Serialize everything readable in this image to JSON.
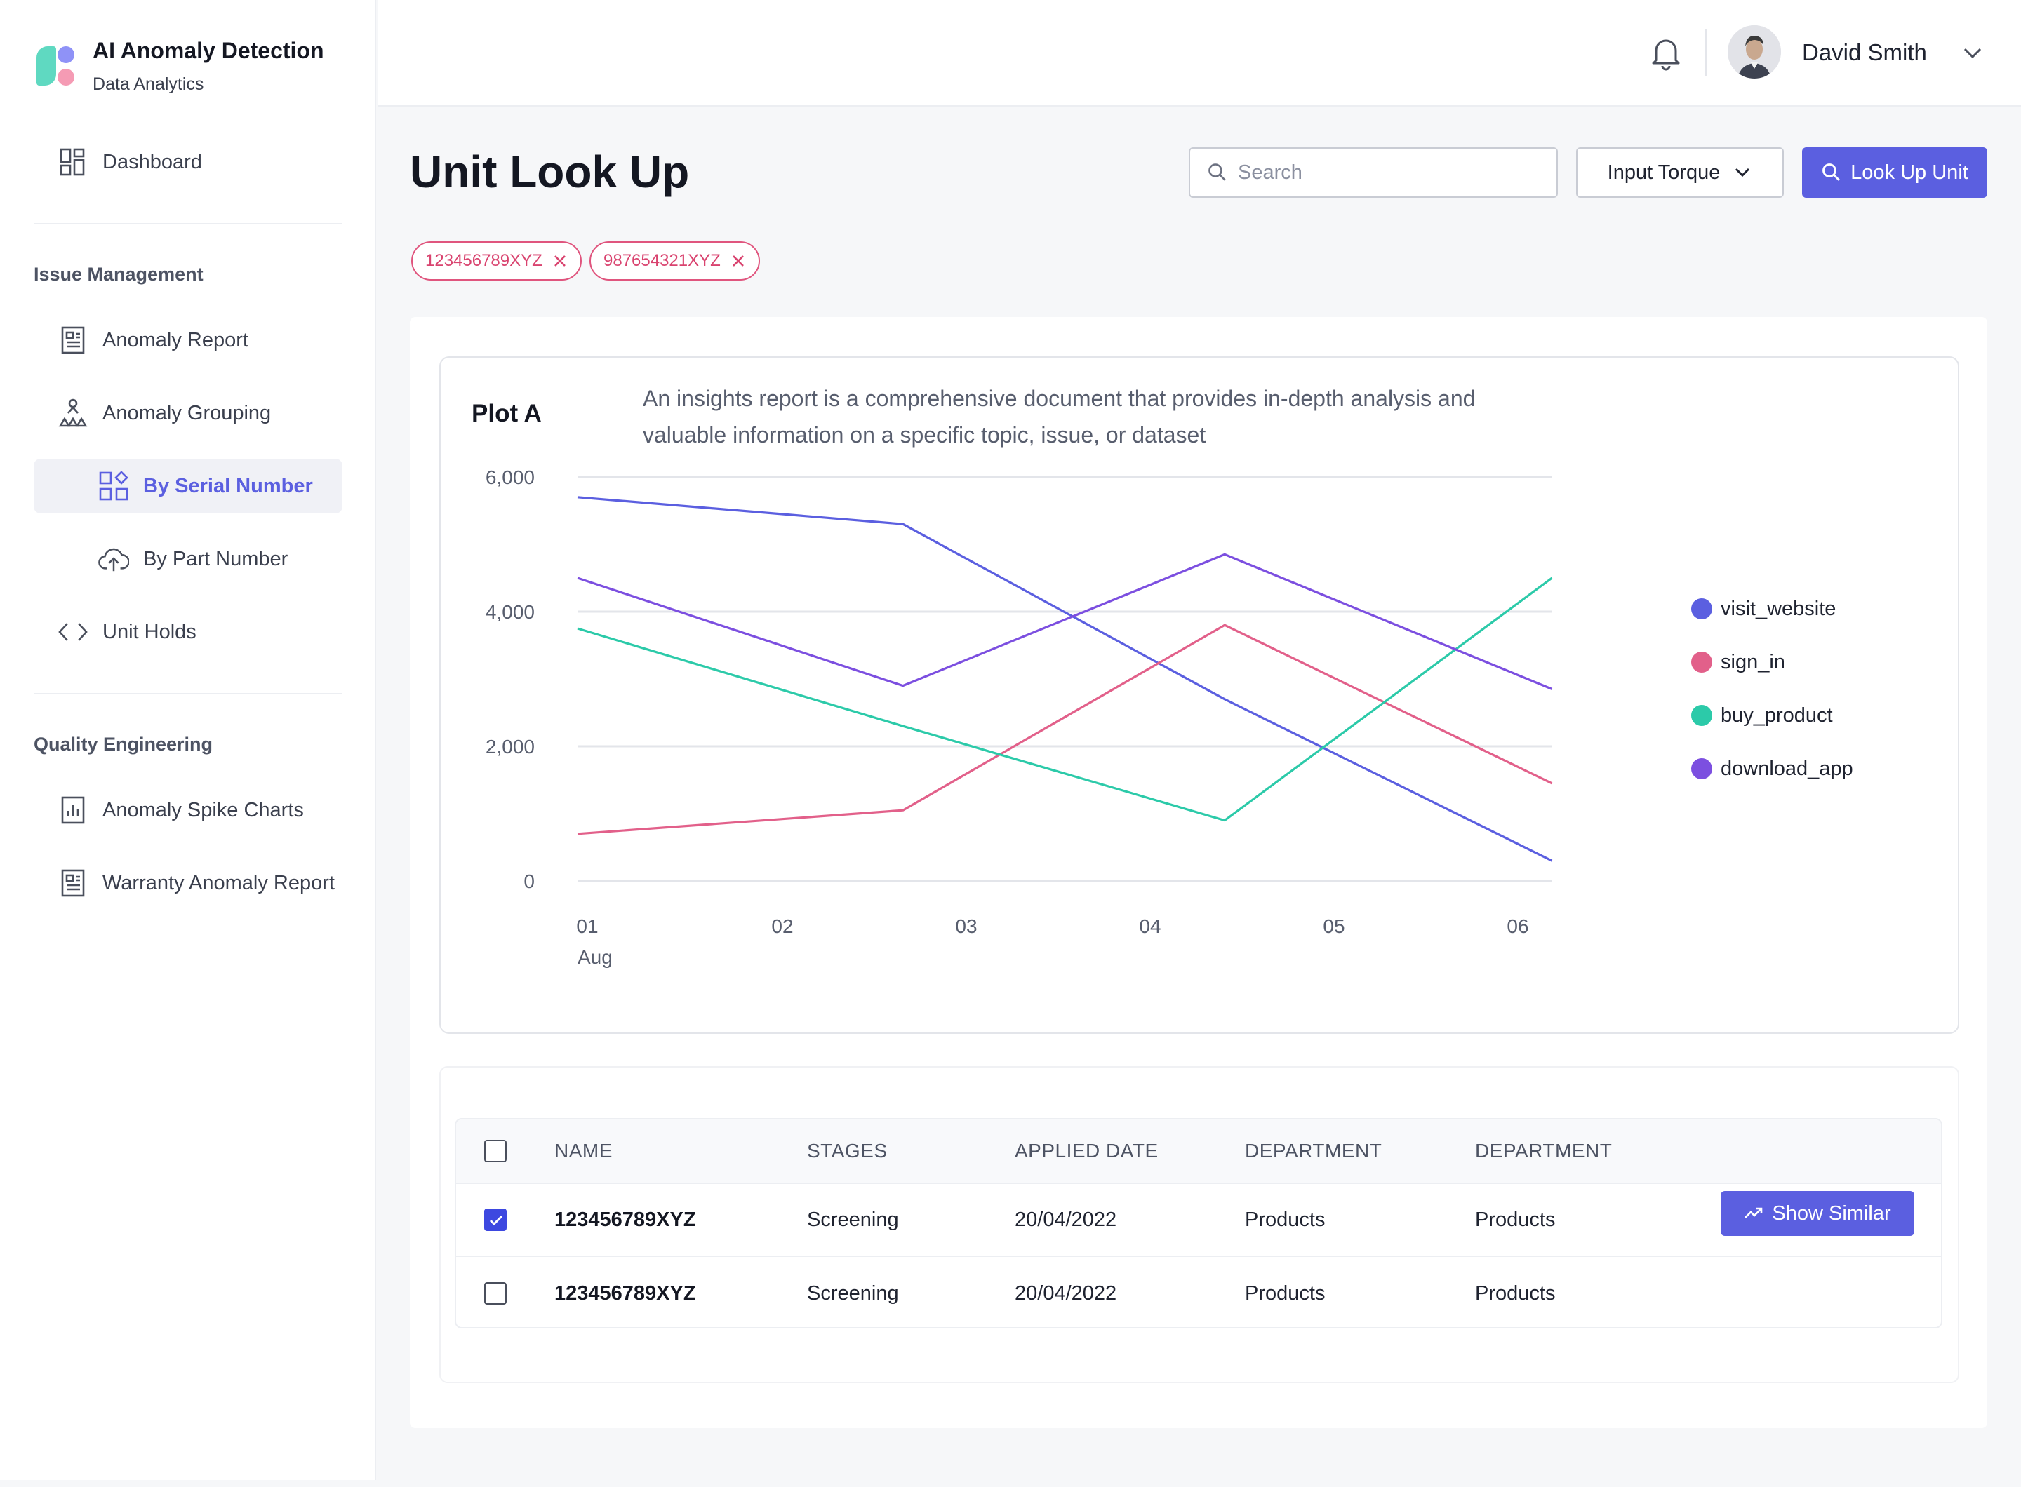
{
  "brand": {
    "title": "AI Anomaly Detection",
    "subtitle": "Data Analytics"
  },
  "sidebar": {
    "dashboard": "Dashboard",
    "section_issue": "Issue Management",
    "anomaly_report": "Anomaly Report",
    "anomaly_grouping": "Anomaly Grouping",
    "by_serial": "By Serial Number",
    "by_part": "By Part Number",
    "unit_holds": "Unit Holds",
    "section_quality": "Quality Engineering",
    "spike_charts": "Anomaly Spike Charts",
    "warranty_report": "Warranty Anomaly Report"
  },
  "topbar": {
    "user_name": "David Smith"
  },
  "page": {
    "title": "Unit Look Up",
    "search_placeholder": "Search",
    "dropdown_value": "Input Torque",
    "lookup_button": "Look Up Unit",
    "chips": [
      "123456789XYZ",
      "987654321XYZ"
    ]
  },
  "plot": {
    "title": "Plot A",
    "description": "An insights report is a comprehensive document that provides in-depth analysis and valuable information on a specific topic, issue, or dataset"
  },
  "chart_data": {
    "type": "line",
    "title": "Plot A",
    "x": [
      "01",
      "02",
      "03",
      "04",
      "05",
      "06"
    ],
    "x_sublabel": "Aug",
    "ylim": [
      0,
      6000
    ],
    "yticks": [
      "6,000",
      "4,000",
      "2,000",
      "0"
    ],
    "grid": true,
    "legend_position": "right",
    "series": [
      {
        "name": "visit_website",
        "color": "#5b5fe0",
        "points": [
          [
            0,
            5700
          ],
          [
            1.77,
            5300
          ],
          [
            3.52,
            2700
          ],
          [
            5.3,
            300
          ]
        ]
      },
      {
        "name": "sign_in",
        "color": "#e2608a",
        "points": [
          [
            0,
            700
          ],
          [
            1.77,
            1050
          ],
          [
            3.52,
            3800
          ],
          [
            5.3,
            1450
          ]
        ]
      },
      {
        "name": "buy_product",
        "color": "#2ccaa9",
        "points": [
          [
            0,
            3750
          ],
          [
            1.77,
            2300
          ],
          [
            3.52,
            900
          ],
          [
            5.3,
            4500
          ]
        ]
      },
      {
        "name": "download_app",
        "color": "#7c4fe0",
        "points": [
          [
            0,
            4500
          ],
          [
            1.77,
            2900
          ],
          [
            3.52,
            4850
          ],
          [
            5.3,
            2850
          ]
        ]
      }
    ]
  },
  "table": {
    "headers": [
      "NAME",
      "STAGES",
      "APPLIED DATE",
      "DEPARTMENT",
      "DEPARTMENT"
    ],
    "rows": [
      {
        "checked": true,
        "cells": [
          "123456789XYZ",
          "Screening",
          "20/04/2022",
          "Products",
          "Products"
        ],
        "action": "Show Similar"
      },
      {
        "checked": false,
        "cells": [
          "123456789XYZ",
          "Screening",
          "20/04/2022",
          "Products",
          "Products"
        ]
      }
    ]
  },
  "colors": {
    "accent": "#5b5fe0",
    "chip": "#e0557e"
  }
}
